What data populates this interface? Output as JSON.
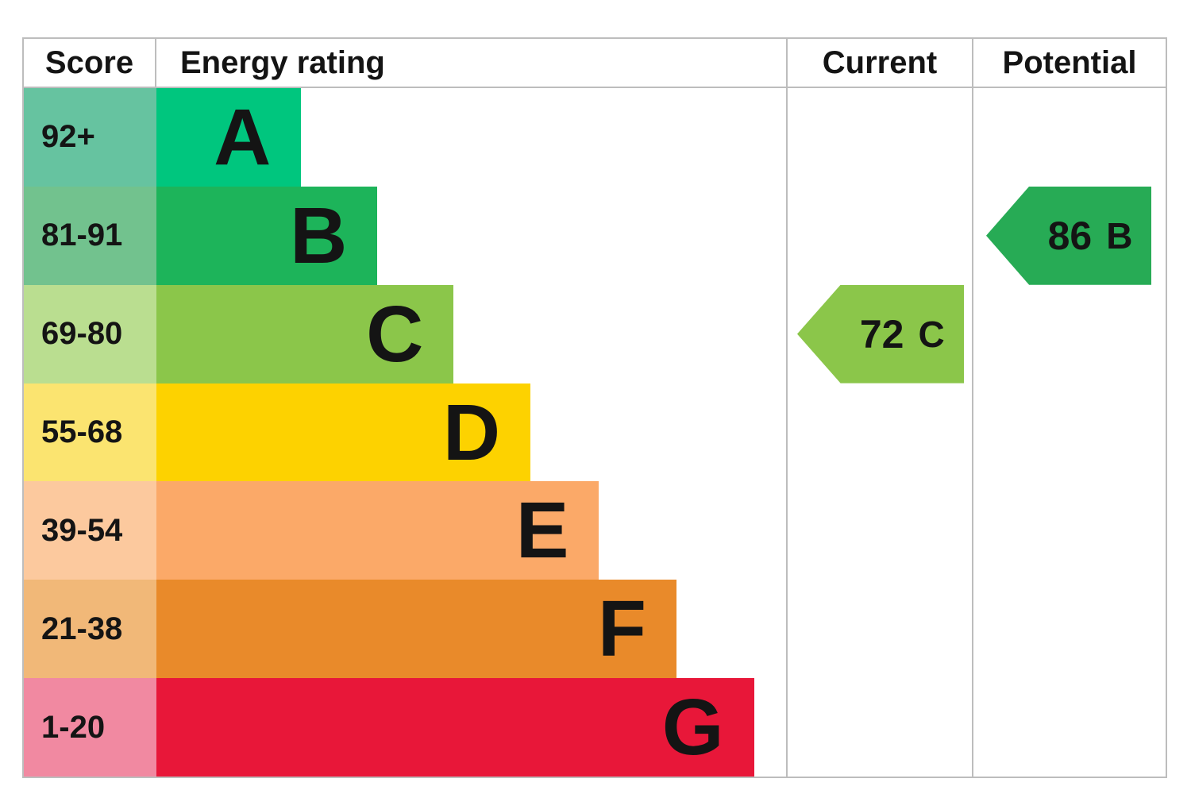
{
  "header": {
    "score": "Score",
    "energy_rating": "Energy rating",
    "current": "Current",
    "potential": "Potential"
  },
  "chart_data": {
    "type": "bar",
    "title": "",
    "columns": [
      "Score",
      "Energy rating",
      "Current",
      "Potential"
    ],
    "legend_position": "none",
    "bands": [
      {
        "score_range": "92+",
        "rating": "A",
        "bar_length_pct": 23.0,
        "bar_color": "#00c67e",
        "score_bg": "#66c3a0"
      },
      {
        "score_range": "81-91",
        "rating": "B",
        "bar_length_pct": 35.1,
        "bar_color": "#1db45a",
        "score_bg": "#72c28e"
      },
      {
        "score_range": "69-80",
        "rating": "C",
        "bar_length_pct": 47.2,
        "bar_color": "#8bc64a",
        "score_bg": "#bade90"
      },
      {
        "score_range": "55-68",
        "rating": "D",
        "bar_length_pct": 59.4,
        "bar_color": "#fdd200",
        "score_bg": "#fbe470"
      },
      {
        "score_range": "39-54",
        "rating": "E",
        "bar_length_pct": 70.3,
        "bar_color": "#fba968",
        "score_bg": "#fcc99e"
      },
      {
        "score_range": "21-38",
        "rating": "F",
        "bar_length_pct": 82.6,
        "bar_color": "#e98a2a",
        "score_bg": "#f1b878"
      },
      {
        "score_range": "1-20",
        "rating": "G",
        "bar_length_pct": 94.9,
        "bar_color": "#e81739",
        "score_bg": "#f189a1"
      }
    ],
    "current": {
      "score": 72,
      "rating": "C",
      "band_row": "C",
      "arrow_color": "#8bc64a"
    },
    "potential": {
      "score": 86,
      "rating": "B",
      "band_row": "B",
      "arrow_color": "#27ab55"
    }
  }
}
